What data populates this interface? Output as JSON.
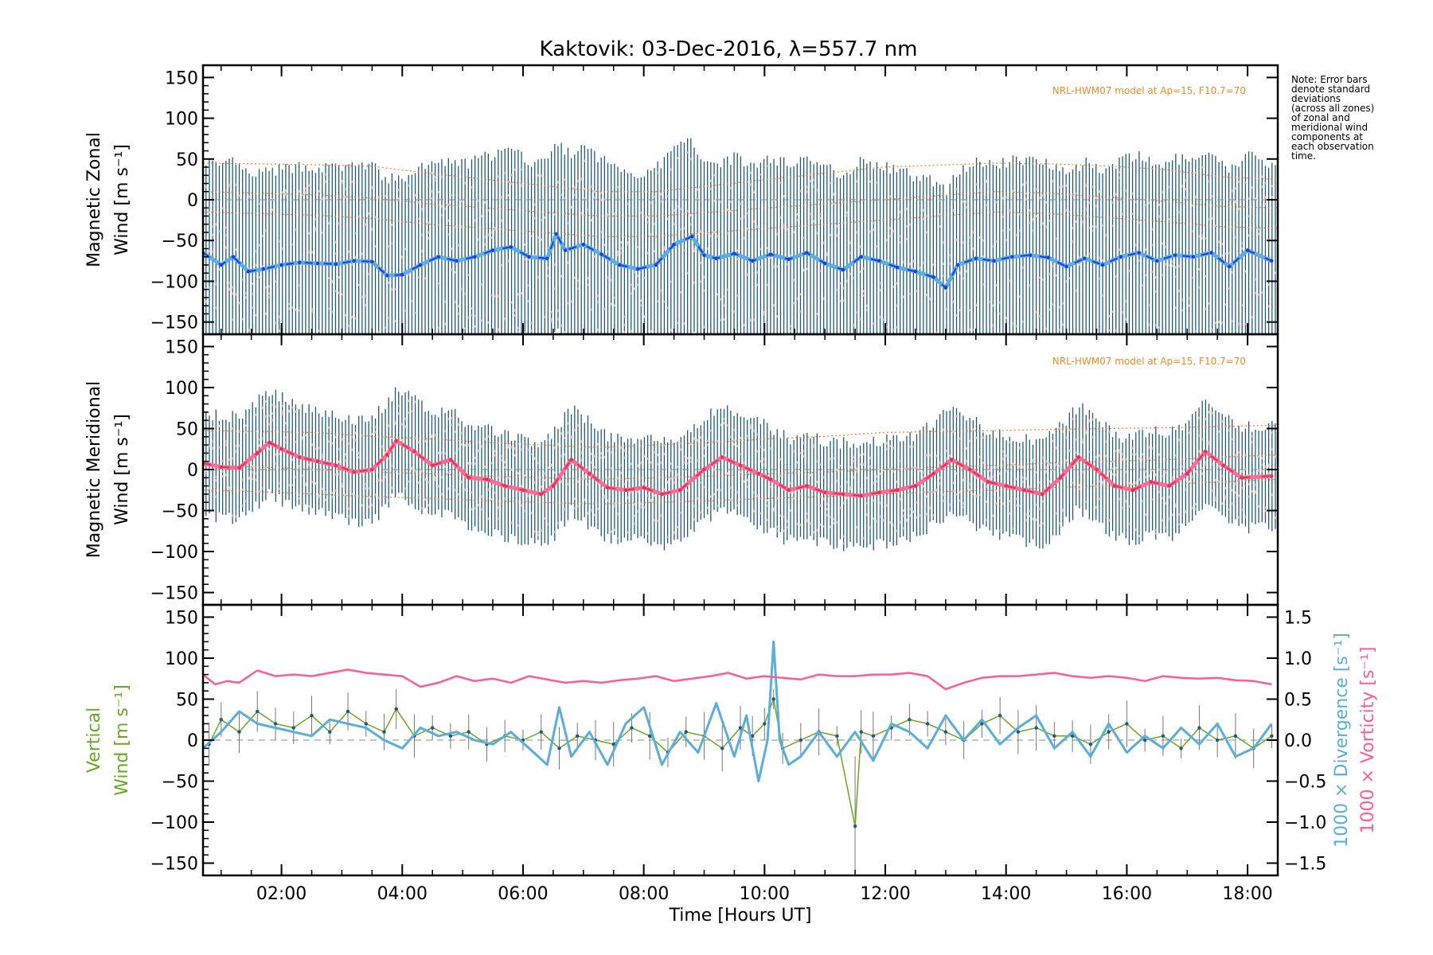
{
  "title": "Kaktovik: 03-Dec-2016, λ=557.7 nm",
  "note": [
    "Note: Error bars",
    "denote standard",
    "deviations",
    "(across all zones)",
    "of zonal and",
    "meridional wind",
    "components at",
    "each observation",
    "time."
  ],
  "colors": {
    "zonal_dark": "#1f3de0",
    "zonal_light": "#5aaee0",
    "merid_dark": "#e8304f",
    "merid_light": "#ff6b93",
    "vertical": "#6aa820",
    "divergence": "#5aaedb",
    "vorticity": "#ff5c92",
    "errorbar": "#1d5a7a",
    "model": "#f08a24"
  },
  "chart_data": [
    {
      "type": "line",
      "panel": "zonal",
      "ylabel": [
        "Magnetic Zonal",
        "Wind [m s⁻¹]"
      ],
      "ylim": [
        -165,
        165
      ],
      "yticks": [
        "150",
        "100",
        "50",
        "0",
        "−50",
        "−100",
        "−150"
      ],
      "yticks_values": [
        150,
        100,
        50,
        0,
        -50,
        -100,
        -150
      ],
      "model_label": "NRL-HWM07 model at Ap=15, F10.7=70",
      "series": [
        {
          "x": [
            0.7,
            1.0,
            1.2,
            1.45,
            1.7,
            2.0,
            2.3,
            2.6,
            2.9,
            3.2,
            3.5,
            3.75,
            4.0,
            4.3,
            4.6,
            4.9,
            5.2,
            5.5,
            5.8,
            6.1,
            6.4,
            6.55,
            6.7,
            7.0,
            7.3,
            7.6,
            7.9,
            8.2,
            8.5,
            8.8,
            9.0,
            9.2,
            9.5,
            9.8,
            10.1,
            10.4,
            10.7,
            11.0,
            11.3,
            11.6,
            11.9,
            12.2,
            12.5,
            12.8,
            13.0,
            13.2,
            13.5,
            13.8,
            14.1,
            14.4,
            14.7,
            15.0,
            15.3,
            15.6,
            15.9,
            16.2,
            16.5,
            16.8,
            17.1,
            17.4,
            17.7,
            18.0,
            18.4
          ],
          "y": [
            -65,
            -80,
            -70,
            -88,
            -85,
            -80,
            -77,
            -78,
            -79,
            -75,
            -76,
            -93,
            -92,
            -80,
            -70,
            -75,
            -70,
            -62,
            -58,
            -70,
            -72,
            -42,
            -62,
            -55,
            -67,
            -80,
            -85,
            -80,
            -55,
            -45,
            -68,
            -72,
            -66,
            -75,
            -67,
            -73,
            -65,
            -78,
            -86,
            -70,
            -75,
            -83,
            -88,
            -95,
            -108,
            -80,
            -72,
            -75,
            -70,
            -68,
            -71,
            -82,
            -72,
            -80,
            -70,
            -65,
            -75,
            -68,
            -70,
            -65,
            -82,
            -62,
            -75
          ]
        }
      ],
      "model_y": [
        10,
        8,
        6,
        2,
        -5,
        -10,
        -15,
        -20,
        -20,
        -15,
        -10,
        -5,
        0,
        5,
        10,
        8,
        3,
        -2,
        -8,
        -10
      ],
      "error_halfwidth_m_s": [
        110,
        125
      ]
    },
    {
      "type": "line",
      "panel": "meridional",
      "ylabel": [
        "Magnetic Meridional",
        "Wind [m s⁻¹]"
      ],
      "ylim": [
        -165,
        165
      ],
      "yticks": [
        "150",
        "100",
        "50",
        "0",
        "−50",
        "−100",
        "−150"
      ],
      "yticks_values": [
        150,
        100,
        50,
        0,
        -50,
        -100,
        -150
      ],
      "model_label": "NRL-HWM07 model at Ap=15, F10.7=70",
      "series": [
        {
          "x": [
            0.7,
            1.0,
            1.3,
            1.6,
            1.8,
            2.0,
            2.3,
            2.6,
            2.9,
            3.2,
            3.5,
            3.75,
            3.9,
            4.2,
            4.5,
            4.8,
            5.1,
            5.4,
            5.7,
            6.0,
            6.3,
            6.5,
            6.8,
            7.1,
            7.4,
            7.7,
            8.0,
            8.3,
            8.6,
            9.0,
            9.3,
            9.6,
            9.9,
            10.1,
            10.4,
            10.7,
            11.0,
            11.3,
            11.6,
            11.9,
            12.2,
            12.5,
            12.8,
            13.1,
            13.4,
            13.7,
            14.0,
            14.3,
            14.6,
            14.9,
            15.2,
            15.5,
            15.8,
            16.1,
            16.4,
            16.7,
            17.0,
            17.3,
            17.6,
            17.9,
            18.4
          ],
          "y": [
            8,
            3,
            2,
            20,
            33,
            25,
            15,
            10,
            5,
            -3,
            0,
            18,
            35,
            22,
            5,
            12,
            -10,
            -12,
            -20,
            -25,
            -30,
            -20,
            12,
            -5,
            -22,
            -25,
            -22,
            -30,
            -25,
            0,
            15,
            5,
            -5,
            -12,
            -25,
            -20,
            -28,
            -30,
            -32,
            -28,
            -25,
            -20,
            -5,
            12,
            0,
            -15,
            -20,
            -25,
            -30,
            -10,
            15,
            0,
            -20,
            -25,
            -15,
            -20,
            -5,
            22,
            5,
            -10,
            -8
          ]
        }
      ],
      "model_y": [
        5,
        3,
        0,
        -3,
        -5,
        -8,
        -10,
        -12,
        -10,
        -8,
        -5,
        -3,
        0,
        3,
        5,
        8,
        10,
        12,
        15,
        18
      ],
      "error_halfwidth_m_s": [
        55,
        70
      ]
    },
    {
      "type": "line",
      "panel": "vertical",
      "xlabel": "Time [Hours UT]",
      "xlim": [
        0.7,
        18.5
      ],
      "xticks": [
        "02:00",
        "04:00",
        "06:00",
        "08:00",
        "10:00",
        "12:00",
        "14:00",
        "16:00",
        "18:00"
      ],
      "xticks_values": [
        2,
        4,
        6,
        8,
        10,
        12,
        14,
        16,
        18
      ],
      "ylabel": [
        "Vertical",
        "Wind [m s⁻¹]"
      ],
      "ylim": [
        -165,
        165
      ],
      "yticks": [
        "150",
        "100",
        "50",
        "0",
        "−50",
        "−100",
        "−150"
      ],
      "yticks_values": [
        150,
        100,
        50,
        0,
        -50,
        -100,
        -150
      ],
      "y2label_divergence": "1000 × Divergence [s⁻¹]",
      "y2label_vorticity": "1000 × Vorticity [s⁻¹]",
      "y2lim": [
        -1.65,
        1.65
      ],
      "y2ticks": [
        "1.5",
        "1.0",
        "0.5",
        "0.0",
        "−0.5",
        "−1.0",
        "−1.5"
      ],
      "y2ticks_values": [
        1.5,
        1.0,
        0.5,
        0.0,
        -0.5,
        -1.0,
        -1.5
      ],
      "series": [
        {
          "name_role": "vertical wind",
          "x": [
            0.8,
            1.0,
            1.3,
            1.6,
            1.9,
            2.2,
            2.5,
            2.8,
            3.1,
            3.4,
            3.7,
            3.9,
            4.2,
            4.5,
            4.8,
            5.1,
            5.4,
            5.7,
            6.0,
            6.3,
            6.6,
            6.9,
            7.2,
            7.5,
            7.8,
            8.1,
            8.4,
            8.7,
            9.0,
            9.3,
            9.6,
            9.8,
            10.0,
            10.15,
            10.3,
            10.6,
            10.9,
            11.2,
            11.5,
            11.6,
            11.8,
            12.1,
            12.4,
            12.7,
            13.0,
            13.3,
            13.6,
            13.9,
            14.2,
            14.5,
            14.8,
            15.1,
            15.4,
            15.7,
            16.0,
            16.3,
            16.6,
            16.9,
            17.2,
            17.5,
            17.8,
            18.1,
            18.4
          ],
          "y": [
            -5,
            25,
            10,
            35,
            20,
            15,
            30,
            10,
            35,
            20,
            10,
            38,
            5,
            15,
            5,
            10,
            -5,
            5,
            0,
            10,
            -10,
            5,
            0,
            -5,
            15,
            5,
            -15,
            10,
            5,
            -10,
            15,
            5,
            20,
            50,
            -10,
            0,
            10,
            5,
            -105,
            10,
            5,
            15,
            25,
            20,
            10,
            0,
            20,
            30,
            10,
            15,
            5,
            5,
            -5,
            10,
            20,
            0,
            5,
            -10,
            15,
            0,
            5,
            -10,
            5
          ]
        },
        {
          "name_role": "divergence",
          "x": [
            0.7,
            1.0,
            1.3,
            1.6,
            1.9,
            2.2,
            2.5,
            2.8,
            3.1,
            3.4,
            3.7,
            4.0,
            4.3,
            4.6,
            4.9,
            5.2,
            5.5,
            5.8,
            6.1,
            6.4,
            6.6,
            6.8,
            7.1,
            7.4,
            7.7,
            8.0,
            8.3,
            8.6,
            8.9,
            9.2,
            9.5,
            9.7,
            9.9,
            10.05,
            10.15,
            10.25,
            10.4,
            10.6,
            10.9,
            11.2,
            11.5,
            11.8,
            12.1,
            12.4,
            12.7,
            13.0,
            13.3,
            13.6,
            13.9,
            14.2,
            14.5,
            14.8,
            15.1,
            15.4,
            15.7,
            16.0,
            16.3,
            16.6,
            16.9,
            17.2,
            17.5,
            17.8,
            18.1,
            18.4
          ],
          "y": [
            -0.1,
            0.1,
            0.35,
            0.2,
            0.15,
            0.1,
            0.05,
            0.25,
            0.2,
            0.15,
            0.0,
            -0.1,
            0.15,
            0.05,
            0.1,
            0.0,
            -0.05,
            0.1,
            -0.1,
            -0.3,
            0.4,
            -0.2,
            0.1,
            -0.3,
            0.2,
            0.4,
            -0.3,
            0.1,
            -0.15,
            0.45,
            -0.2,
            0.3,
            -0.5,
            0.0,
            1.2,
            0.0,
            -0.3,
            -0.2,
            0.1,
            -0.2,
            0.1,
            -0.25,
            0.2,
            0.1,
            -0.1,
            0.3,
            0.0,
            0.25,
            -0.05,
            0.15,
            0.3,
            -0.1,
            0.1,
            -0.2,
            0.2,
            -0.15,
            0.05,
            -0.1,
            0.15,
            -0.05,
            0.2,
            -0.2,
            -0.1,
            0.2
          ]
        },
        {
          "name_role": "vorticity",
          "x": [
            0.7,
            0.9,
            1.1,
            1.3,
            1.6,
            1.9,
            2.2,
            2.5,
            2.8,
            3.1,
            3.4,
            3.7,
            4.0,
            4.3,
            4.6,
            4.9,
            5.2,
            5.5,
            5.8,
            6.1,
            6.4,
            6.7,
            7.0,
            7.3,
            7.6,
            7.9,
            8.2,
            8.5,
            8.8,
            9.1,
            9.4,
            9.7,
            10.0,
            10.3,
            10.6,
            10.9,
            11.2,
            11.5,
            11.8,
            12.1,
            12.4,
            12.7,
            13.0,
            13.3,
            13.6,
            13.9,
            14.2,
            14.5,
            14.8,
            15.1,
            15.4,
            15.7,
            16.0,
            16.3,
            16.6,
            16.9,
            17.2,
            17.5,
            17.8,
            18.1,
            18.4
          ],
          "y": [
            0.8,
            0.68,
            0.72,
            0.7,
            0.85,
            0.78,
            0.8,
            0.78,
            0.82,
            0.86,
            0.82,
            0.8,
            0.78,
            0.65,
            0.7,
            0.78,
            0.72,
            0.75,
            0.7,
            0.78,
            0.74,
            0.7,
            0.72,
            0.7,
            0.73,
            0.75,
            0.78,
            0.72,
            0.75,
            0.78,
            0.82,
            0.75,
            0.78,
            0.76,
            0.74,
            0.8,
            0.78,
            0.78,
            0.8,
            0.8,
            0.82,
            0.78,
            0.62,
            0.7,
            0.76,
            0.78,
            0.78,
            0.8,
            0.82,
            0.78,
            0.76,
            0.78,
            0.76,
            0.72,
            0.78,
            0.76,
            0.75,
            0.76,
            0.73,
            0.72,
            0.68
          ]
        }
      ]
    }
  ]
}
